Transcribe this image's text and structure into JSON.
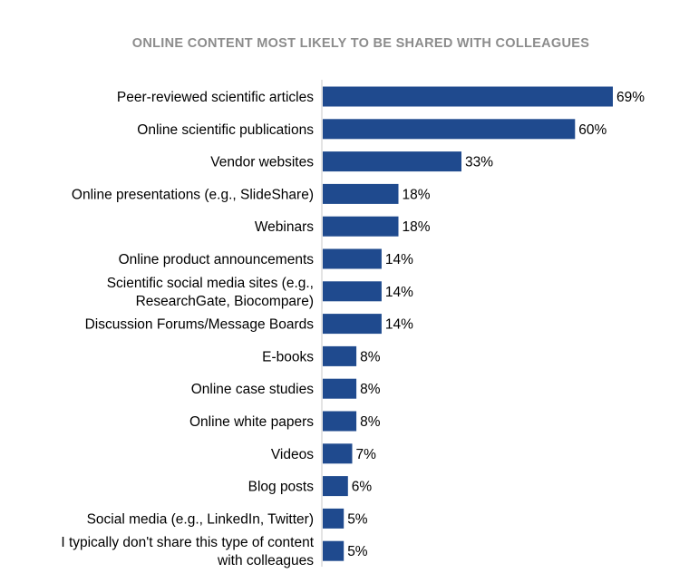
{
  "chart_data": {
    "type": "bar",
    "orientation": "horizontal",
    "title": "ONLINE CONTENT MOST LIKELY TO BE SHARED WITH COLLEAGUES",
    "categories": [
      "Peer-reviewed scientific articles",
      "Online scientific publications",
      "Vendor websites",
      "Online presentations (e.g., SlideShare)",
      "Webinars",
      "Online product announcements",
      "Scientific social media sites (e.g., ResearchGate, Biocompare)",
      "Discussion Forums/Message Boards",
      "E-books",
      "Online case studies",
      "Online white papers",
      "Videos",
      "Blog posts",
      "Social media (e.g., LinkedIn, Twitter)",
      "I typically don't share this type of content with colleagues"
    ],
    "category_lines": [
      [
        "Peer-reviewed scientific articles"
      ],
      [
        "Online scientific publications"
      ],
      [
        "Vendor websites"
      ],
      [
        "Online presentations (e.g., SlideShare)"
      ],
      [
        "Webinars"
      ],
      [
        "Online product announcements"
      ],
      [
        "Scientific social media sites (e.g.,",
        "ResearchGate, Biocompare)"
      ],
      [
        "Discussion Forums/Message Boards"
      ],
      [
        "E-books"
      ],
      [
        "Online case studies"
      ],
      [
        "Online white papers"
      ],
      [
        "Videos"
      ],
      [
        "Blog posts"
      ],
      [
        "Social media (e.g., LinkedIn, Twitter)"
      ],
      [
        "I typically don't share this type of content",
        "with colleagues"
      ]
    ],
    "values": [
      69,
      60,
      33,
      18,
      18,
      14,
      14,
      14,
      8,
      8,
      8,
      7,
      6,
      5,
      5
    ],
    "value_labels": [
      "69%",
      "60%",
      "33%",
      "18%",
      "18%",
      "14%",
      "14%",
      "14%",
      "8%",
      "8%",
      "8%",
      "7%",
      "6%",
      "5%",
      "5%"
    ],
    "xlabel": "",
    "ylabel": "",
    "xlim": [
      0,
      69
    ],
    "grid": false,
    "legend": "none",
    "bar_color": "#1f4a8e"
  }
}
